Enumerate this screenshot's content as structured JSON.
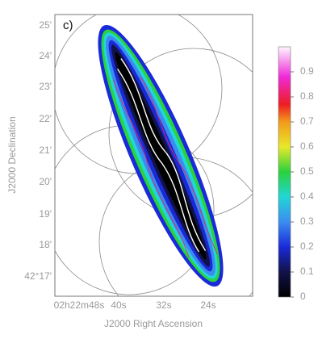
{
  "chart_data": {
    "type": "map",
    "title": "c)",
    "xlabel": "J2000 Right Ascension",
    "ylabel": "J2000 Declination",
    "xticks": [
      "02h22m48s",
      "40s",
      "32s",
      "24s"
    ],
    "yticks": [
      "25'",
      "24'",
      "23'",
      "22'",
      "21'",
      "20'",
      "19'",
      "18'",
      "42°17'"
    ],
    "colorbar": {
      "lim": [
        0,
        1
      ],
      "ticks": [
        0,
        0.1,
        0.2,
        0.3,
        0.4,
        0.5,
        0.6,
        0.7,
        0.8,
        0.9
      ]
    }
  }
}
